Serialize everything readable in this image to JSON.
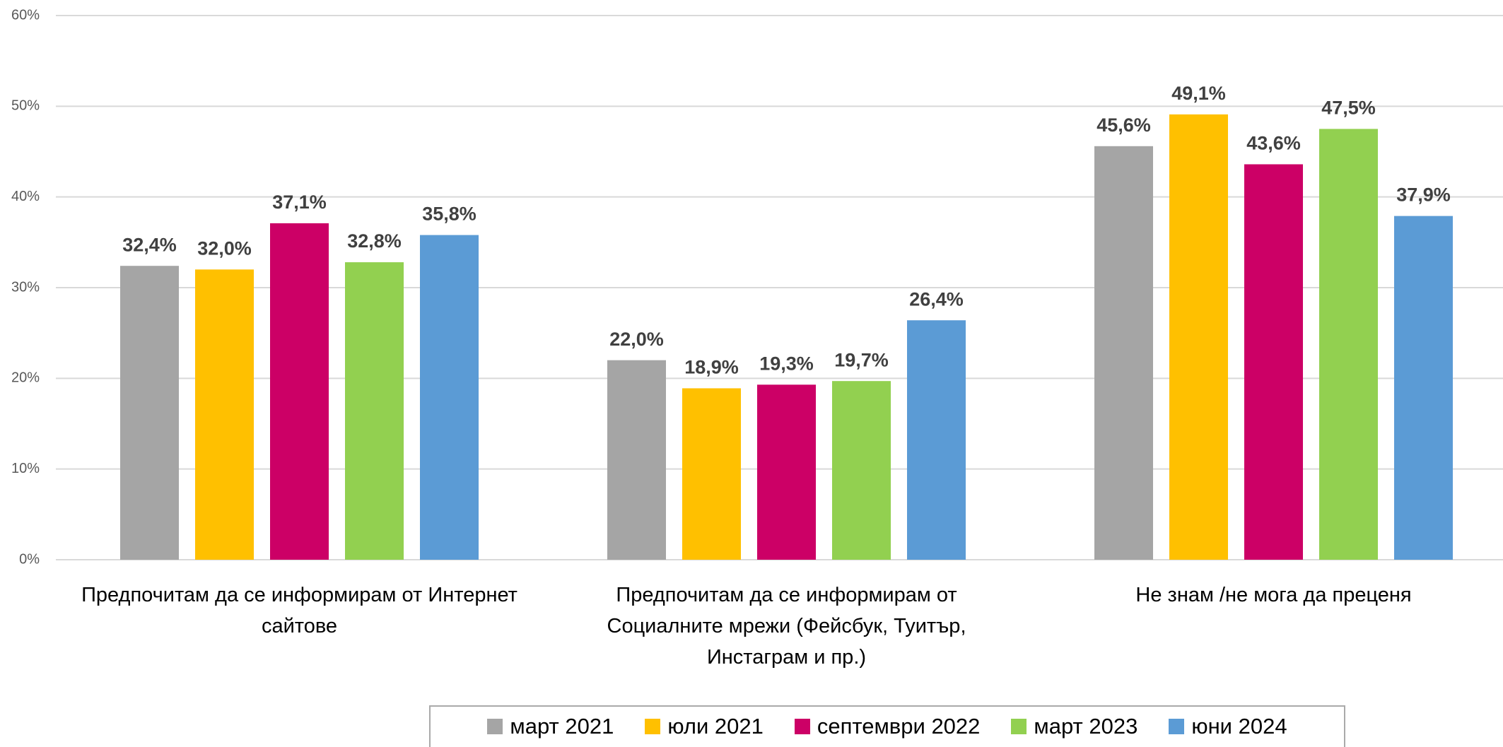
{
  "chart_data": {
    "type": "bar",
    "categories": [
      "Предпочитам да се информирам от Интернет сайтове",
      "Предпочитам да се информирам от Социалните мрежи (Фейсбук, Туитър, Инстаграм и пр.)",
      "Не знам /не мога да преценя"
    ],
    "series": [
      {
        "name": "март 2021",
        "color": "#a5a5a5",
        "values": [
          32.4,
          22.0,
          45.6
        ],
        "value_labels": [
          "32,4%",
          "22,0%",
          "45,6%"
        ]
      },
      {
        "name": "юли 2021",
        "color": "#ffc000",
        "values": [
          32.0,
          18.9,
          49.1
        ],
        "value_labels": [
          "32,0%",
          "18,9%",
          "49,1%"
        ]
      },
      {
        "name": "септември 2022",
        "color": "#cc0066",
        "values": [
          37.1,
          19.3,
          43.6
        ],
        "value_labels": [
          "37,1%",
          "19,3%",
          "43,6%"
        ]
      },
      {
        "name": "март 2023",
        "color": "#92d050",
        "values": [
          32.8,
          19.7,
          47.5
        ],
        "value_labels": [
          "32,8%",
          "19,7%",
          "47,5%"
        ]
      },
      {
        "name": "юни 2024",
        "color": "#5b9bd5",
        "values": [
          35.8,
          26.4,
          37.9
        ],
        "value_labels": [
          "35,8%",
          "26,4%",
          "37,9%"
        ]
      }
    ],
    "ylim": [
      0,
      60
    ],
    "yticks": [
      {
        "value": 0,
        "label": "0%"
      },
      {
        "value": 10,
        "label": "10%"
      },
      {
        "value": 20,
        "label": "20%"
      },
      {
        "value": 30,
        "label": "30%"
      },
      {
        "value": 40,
        "label": "40%"
      },
      {
        "value": 50,
        "label": "50%"
      },
      {
        "value": 60,
        "label": "60%"
      }
    ],
    "grid": true,
    "legend": "bottom"
  }
}
